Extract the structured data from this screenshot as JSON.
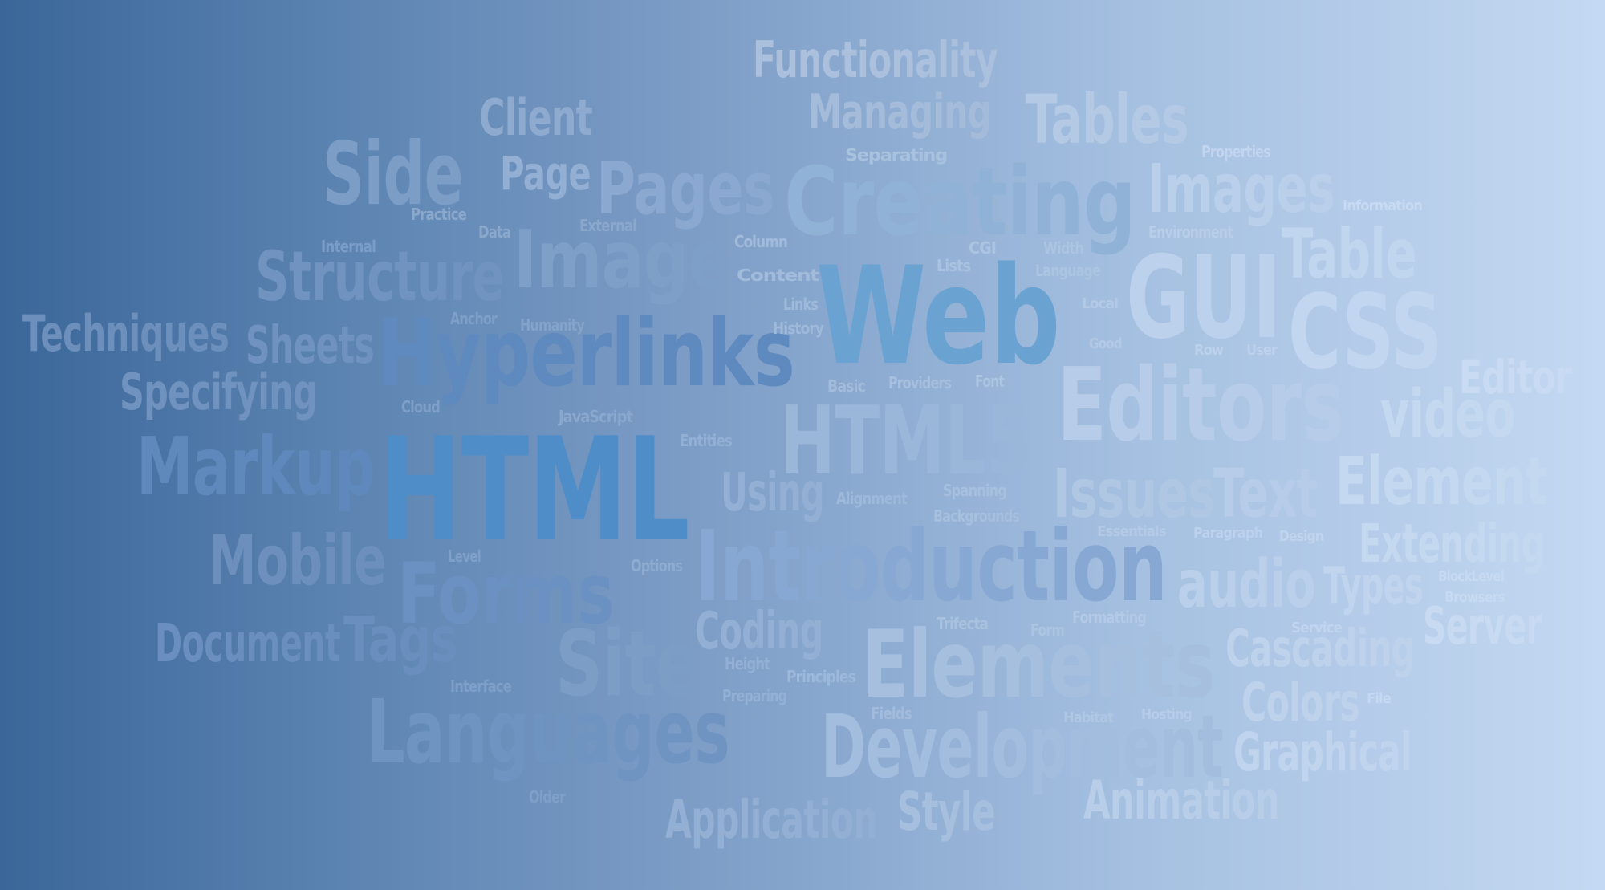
{
  "words": [
    {
      "text": "Functionality",
      "color": "#aac0dc"
    },
    {
      "text": "Managing",
      "color": "#a4bcd9"
    },
    {
      "text": "Tables",
      "color": "#b3c9e4"
    },
    {
      "text": "Client",
      "color": "#8eaace"
    },
    {
      "text": "Side",
      "color": "#7b9dc6"
    },
    {
      "text": "Page",
      "color": "#93b0d4"
    },
    {
      "text": "Pages",
      "color": "#8ba9d0"
    },
    {
      "text": "Creating",
      "color": "#8fb2d6"
    },
    {
      "text": "Separating",
      "color": "#a8c1df"
    },
    {
      "text": "Properties",
      "color": "#c1d5ee"
    },
    {
      "text": "Images",
      "color": "#b9cfea"
    },
    {
      "text": "Information",
      "color": "#c7daf1"
    },
    {
      "text": "Practice",
      "color": "#8aa7cc"
    },
    {
      "text": "Data",
      "color": "#8aa7cc"
    },
    {
      "text": "External",
      "color": "#8aa7cc"
    },
    {
      "text": "Image",
      "color": "#7e9fc8"
    },
    {
      "text": "Column",
      "color": "#a2bbdb"
    },
    {
      "text": "CGI",
      "color": "#abc4e1"
    },
    {
      "text": "Width",
      "color": "#abc4e1"
    },
    {
      "text": "Environment",
      "color": "#b8cde8"
    },
    {
      "text": "Table",
      "color": "#c0d5ee"
    },
    {
      "text": "Internal",
      "color": "#7a9cc6"
    },
    {
      "text": "Structure",
      "color": "#7093c0"
    },
    {
      "text": "Content",
      "color": "#a2bbdb"
    },
    {
      "text": "Lists",
      "color": "#a9c2e0"
    },
    {
      "text": "Language",
      "color": "#abc4e1"
    },
    {
      "text": "Web",
      "color": "#6aa3d2"
    },
    {
      "text": "GUI",
      "color": "#bcd1ec"
    },
    {
      "text": "Local",
      "color": "#b3c9e6"
    },
    {
      "text": "CSS",
      "color": "#c2d6ef"
    },
    {
      "text": "Techniques",
      "color": "#6c8fbc"
    },
    {
      "text": "Sheets",
      "color": "#7092c0"
    },
    {
      "text": "Anchor",
      "color": "#7e9fc8"
    },
    {
      "text": "Humanity",
      "color": "#84a3ca"
    },
    {
      "text": "Hyperlinks",
      "color": "#5f8abf"
    },
    {
      "text": "Links",
      "color": "#9fb9da"
    },
    {
      "text": "History",
      "color": "#9fb9da"
    },
    {
      "text": "Good",
      "color": "#b3c9e6"
    },
    {
      "text": "Row",
      "color": "#bcd1ec"
    },
    {
      "text": "User",
      "color": "#bcd1ec"
    },
    {
      "text": "Editors",
      "color": "#b6cce8"
    },
    {
      "text": "Editor",
      "color": "#c8dbf2"
    },
    {
      "text": "Specifying",
      "color": "#6f92bf"
    },
    {
      "text": "Cloud",
      "color": "#7e9fc8"
    },
    {
      "text": "JavaScript",
      "color": "#8aa8ce"
    },
    {
      "text": "Basic",
      "color": "#a2bbdb"
    },
    {
      "text": "Providers",
      "color": "#a6bfde"
    },
    {
      "text": "Font",
      "color": "#abc4e1"
    },
    {
      "text": "video",
      "color": "#c4d8f0"
    },
    {
      "text": "HTML5",
      "color": "#9ab7da"
    },
    {
      "text": "Markup",
      "color": "#5f89bc"
    },
    {
      "text": "HTML",
      "color": "#4e8dc8"
    },
    {
      "text": "Entities",
      "color": "#93b0d4"
    },
    {
      "text": "Issues",
      "color": "#b0c7e4"
    },
    {
      "text": "Text",
      "color": "#b6cce8"
    },
    {
      "text": "Element",
      "color": "#c4d8f0"
    },
    {
      "text": "Using",
      "color": "#93b0d4"
    },
    {
      "text": "Alignment",
      "color": "#9cb8da"
    },
    {
      "text": "Spanning",
      "color": "#a6bfde"
    },
    {
      "text": "Backgrounds",
      "color": "#a6bfde"
    },
    {
      "text": "Essentials",
      "color": "#b3c9e6"
    },
    {
      "text": "Paragraph",
      "color": "#bcd1ec"
    },
    {
      "text": "Design",
      "color": "#c0d4ee"
    },
    {
      "text": "Extending",
      "color": "#c4d8f0"
    },
    {
      "text": "Mobile",
      "color": "#6c8fbd"
    },
    {
      "text": "Level",
      "color": "#7e9fc8"
    },
    {
      "text": "Forms",
      "color": "#6b91c2"
    },
    {
      "text": "Options",
      "color": "#8eabd0"
    },
    {
      "text": "Introduction",
      "color": "#86a8d2"
    },
    {
      "text": "audio",
      "color": "#bad0ea"
    },
    {
      "text": "Types",
      "color": "#c0d4ee"
    },
    {
      "text": "BlockLevel",
      "color": "#c7daf1"
    },
    {
      "text": "Browsers",
      "color": "#c7daf1"
    },
    {
      "text": "Document",
      "color": "#6a8ebd"
    },
    {
      "text": "Tags",
      "color": "#6a8ebd"
    },
    {
      "text": "Site",
      "color": "#7b9dc6"
    },
    {
      "text": "Coding",
      "color": "#93b0d4"
    },
    {
      "text": "Trifecta",
      "color": "#a8c1df"
    },
    {
      "text": "Form",
      "color": "#abc4e1"
    },
    {
      "text": "Formatting",
      "color": "#b3c9e6"
    },
    {
      "text": "Service",
      "color": "#c0d4ee"
    },
    {
      "text": "Server",
      "color": "#c7daf1"
    },
    {
      "text": "Cascading",
      "color": "#bed2ec"
    },
    {
      "text": "Elements",
      "color": "#a6bfde"
    },
    {
      "text": "Interface",
      "color": "#7e9fc8"
    },
    {
      "text": "Height",
      "color": "#93b0d4"
    },
    {
      "text": "Principles",
      "color": "#9cb8da"
    },
    {
      "text": "Preparing",
      "color": "#93b0d4"
    },
    {
      "text": "Colors",
      "color": "#bed2ec"
    },
    {
      "text": "File",
      "color": "#c4d8f0"
    },
    {
      "text": "Languages",
      "color": "#6f94c2"
    },
    {
      "text": "Fields",
      "color": "#a2bbdb"
    },
    {
      "text": "Habitat",
      "color": "#b0c7e4"
    },
    {
      "text": "Hosting",
      "color": "#b6cce8"
    },
    {
      "text": "Development",
      "color": "#a2bdde"
    },
    {
      "text": "Graphical",
      "color": "#c0d4ee"
    },
    {
      "text": "Older",
      "color": "#7e9fc8"
    },
    {
      "text": "Application",
      "color": "#93b0d4"
    },
    {
      "text": "Style",
      "color": "#a6bfde"
    },
    {
      "text": "Animation",
      "color": "#b8cde8"
    }
  ]
}
